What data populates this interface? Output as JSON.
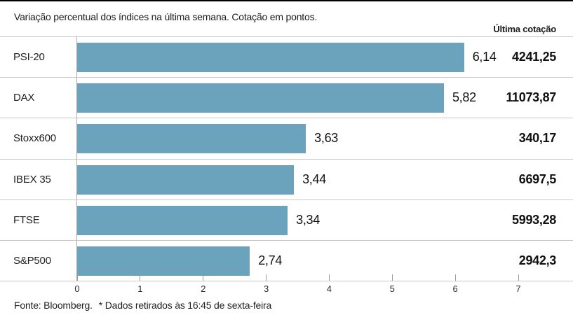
{
  "header": {
    "title": "Variação percentual dos índices na última semana. Cotação em pontos.",
    "last_quote_column": "Última cotação"
  },
  "footer": {
    "source": "Fonte: Bloomberg.",
    "note": "* Dados retirados às 16:45 de sexta-feira"
  },
  "colors": {
    "bar": "#6ba3bc",
    "row_separator": "#c9c9c9",
    "zero_line": "#ababab",
    "tick": "#9b9b9b",
    "top_rule": "#000000",
    "text": "#1a1a1a"
  },
  "chart_data": {
    "type": "bar",
    "orientation": "horizontal",
    "title": "Variação percentual dos índices na última semana. Cotação em pontos.",
    "categories": [
      "PSI-20",
      "DAX",
      "Stoxx600",
      "IBEX 35",
      "FTSE",
      "S&P500"
    ],
    "series": [
      {
        "name": "Variação percentual na última semana",
        "values": [
          6.14,
          5.82,
          3.63,
          3.44,
          3.34,
          2.74
        ],
        "labels": [
          "6,14",
          "5,82",
          "3,63",
          "3,44",
          "3,34",
          "2,74"
        ]
      },
      {
        "name": "Última cotação",
        "values": [
          4241.25,
          11073.87,
          340.17,
          6697.5,
          5993.28,
          2942.3
        ],
        "labels": [
          "4241,25",
          "11073,87",
          "340,17",
          "6697,5",
          "5993,28",
          "2942,3"
        ]
      }
    ],
    "xlim": [
      0,
      7
    ],
    "x_ticks": [
      0,
      1,
      2,
      3,
      4,
      5,
      6,
      7
    ],
    "grid": "zero-line-only",
    "legend_position": "none",
    "source_note": "Fonte: Bloomberg.  * Dados retirados às 16:45 de sexta-feira"
  }
}
